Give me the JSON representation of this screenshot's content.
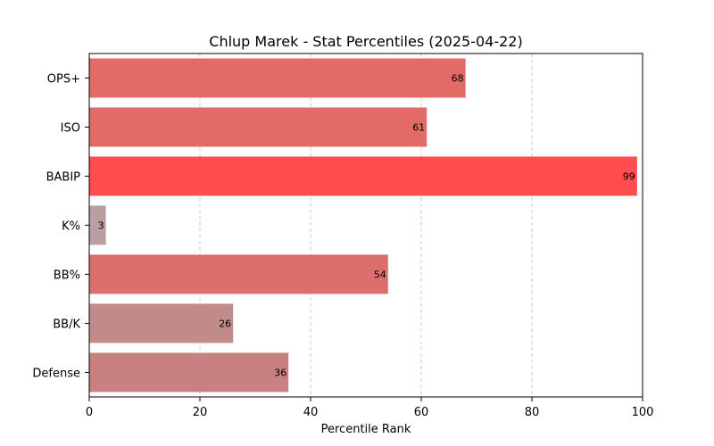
{
  "chart_data": {
    "type": "bar",
    "orientation": "horizontal",
    "title": "Chlup Marek - Stat Percentiles (2025-04-22)",
    "xlabel": "Percentile Rank",
    "ylabel": "",
    "xlim": [
      0,
      100
    ],
    "xticks": [
      0,
      20,
      40,
      60,
      80,
      100
    ],
    "grid": "vertical dashed",
    "categories": [
      "OPS+",
      "ISO",
      "BABIP",
      "K%",
      "BB%",
      "BB/K",
      "Defense"
    ],
    "values": [
      68,
      61,
      99,
      3,
      54,
      26,
      36
    ],
    "colors": [
      "#e26a67",
      "#e26a67",
      "#ff4d4d",
      "#b8a0a2",
      "#dc6f6c",
      "#c08b8a",
      "#c88080"
    ]
  }
}
